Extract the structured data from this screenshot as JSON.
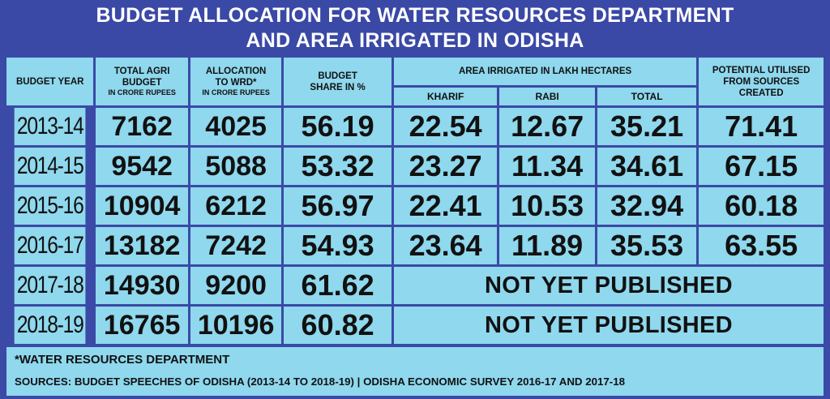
{
  "title_line1": "BUDGET ALLOCATION FOR WATER RESOURCES DEPARTMENT",
  "title_line2": "AND AREA IRRIGATED IN ODISHA",
  "headers": {
    "year": "BUDGET YEAR",
    "agri": "TOTAL AGRI BUDGET",
    "agri_unit": "IN CRORE RUPEES",
    "wrd": "ALLOCATION TO WRD*",
    "wrd_unit": "IN CRORE RUPEES",
    "share": "BUDGET SHARE IN %",
    "area": "AREA IRRIGATED IN LAKH HECTARES",
    "kharif": "KHARIF",
    "rabi": "RABI",
    "total": "TOTAL",
    "potential": "POTENTIAL UTILISED FROM SOURCES CREATED"
  },
  "not_published": "NOT YET PUBLISHED",
  "footnote": "*WATER RESOURCES DEPARTMENT",
  "sources": "SOURCES: BUDGET SPEECHES OF ODISHA (2013-14 TO 2018-19) | ODISHA ECONOMIC SURVEY 2016-17 AND 2017-18",
  "chart_data": {
    "type": "table",
    "title": "BUDGET ALLOCATION FOR WATER RESOURCES DEPARTMENT AND AREA IRRIGATED IN ODISHA",
    "columns": [
      "BUDGET YEAR",
      "TOTAL AGRI BUDGET IN CRORE RUPEES",
      "ALLOCATION TO WRD* IN CRORE RUPEES",
      "BUDGET SHARE IN %",
      "KHARIF",
      "RABI",
      "TOTAL",
      "POTENTIAL UTILISED FROM SOURCES CREATED"
    ],
    "rows": [
      {
        "year": "2013-14",
        "agri": "7162",
        "wrd": "4025",
        "share": "56.19",
        "kharif": "22.54",
        "rabi": "12.67",
        "total": "35.21",
        "potential": "71.41"
      },
      {
        "year": "2014-15",
        "agri": "9542",
        "wrd": "5088",
        "share": "53.32",
        "kharif": "23.27",
        "rabi": "11.34",
        "total": "34.61",
        "potential": "67.15"
      },
      {
        "year": "2015-16",
        "agri": "10904",
        "wrd": "6212",
        "share": "56.97",
        "kharif": "22.41",
        "rabi": "10.53",
        "total": "32.94",
        "potential": "60.18"
      },
      {
        "year": "2016-17",
        "agri": "13182",
        "wrd": "7242",
        "share": "54.93",
        "kharif": "23.64",
        "rabi": "11.89",
        "total": "35.53",
        "potential": "63.55"
      },
      {
        "year": "2017-18",
        "agri": "14930",
        "wrd": "9200",
        "share": "61.62",
        "kharif": null,
        "rabi": null,
        "total": null,
        "potential": null
      },
      {
        "year": "2018-19",
        "agri": "16765",
        "wrd": "10196",
        "share": "60.82",
        "kharif": null,
        "rabi": null,
        "total": null,
        "potential": null
      }
    ]
  }
}
